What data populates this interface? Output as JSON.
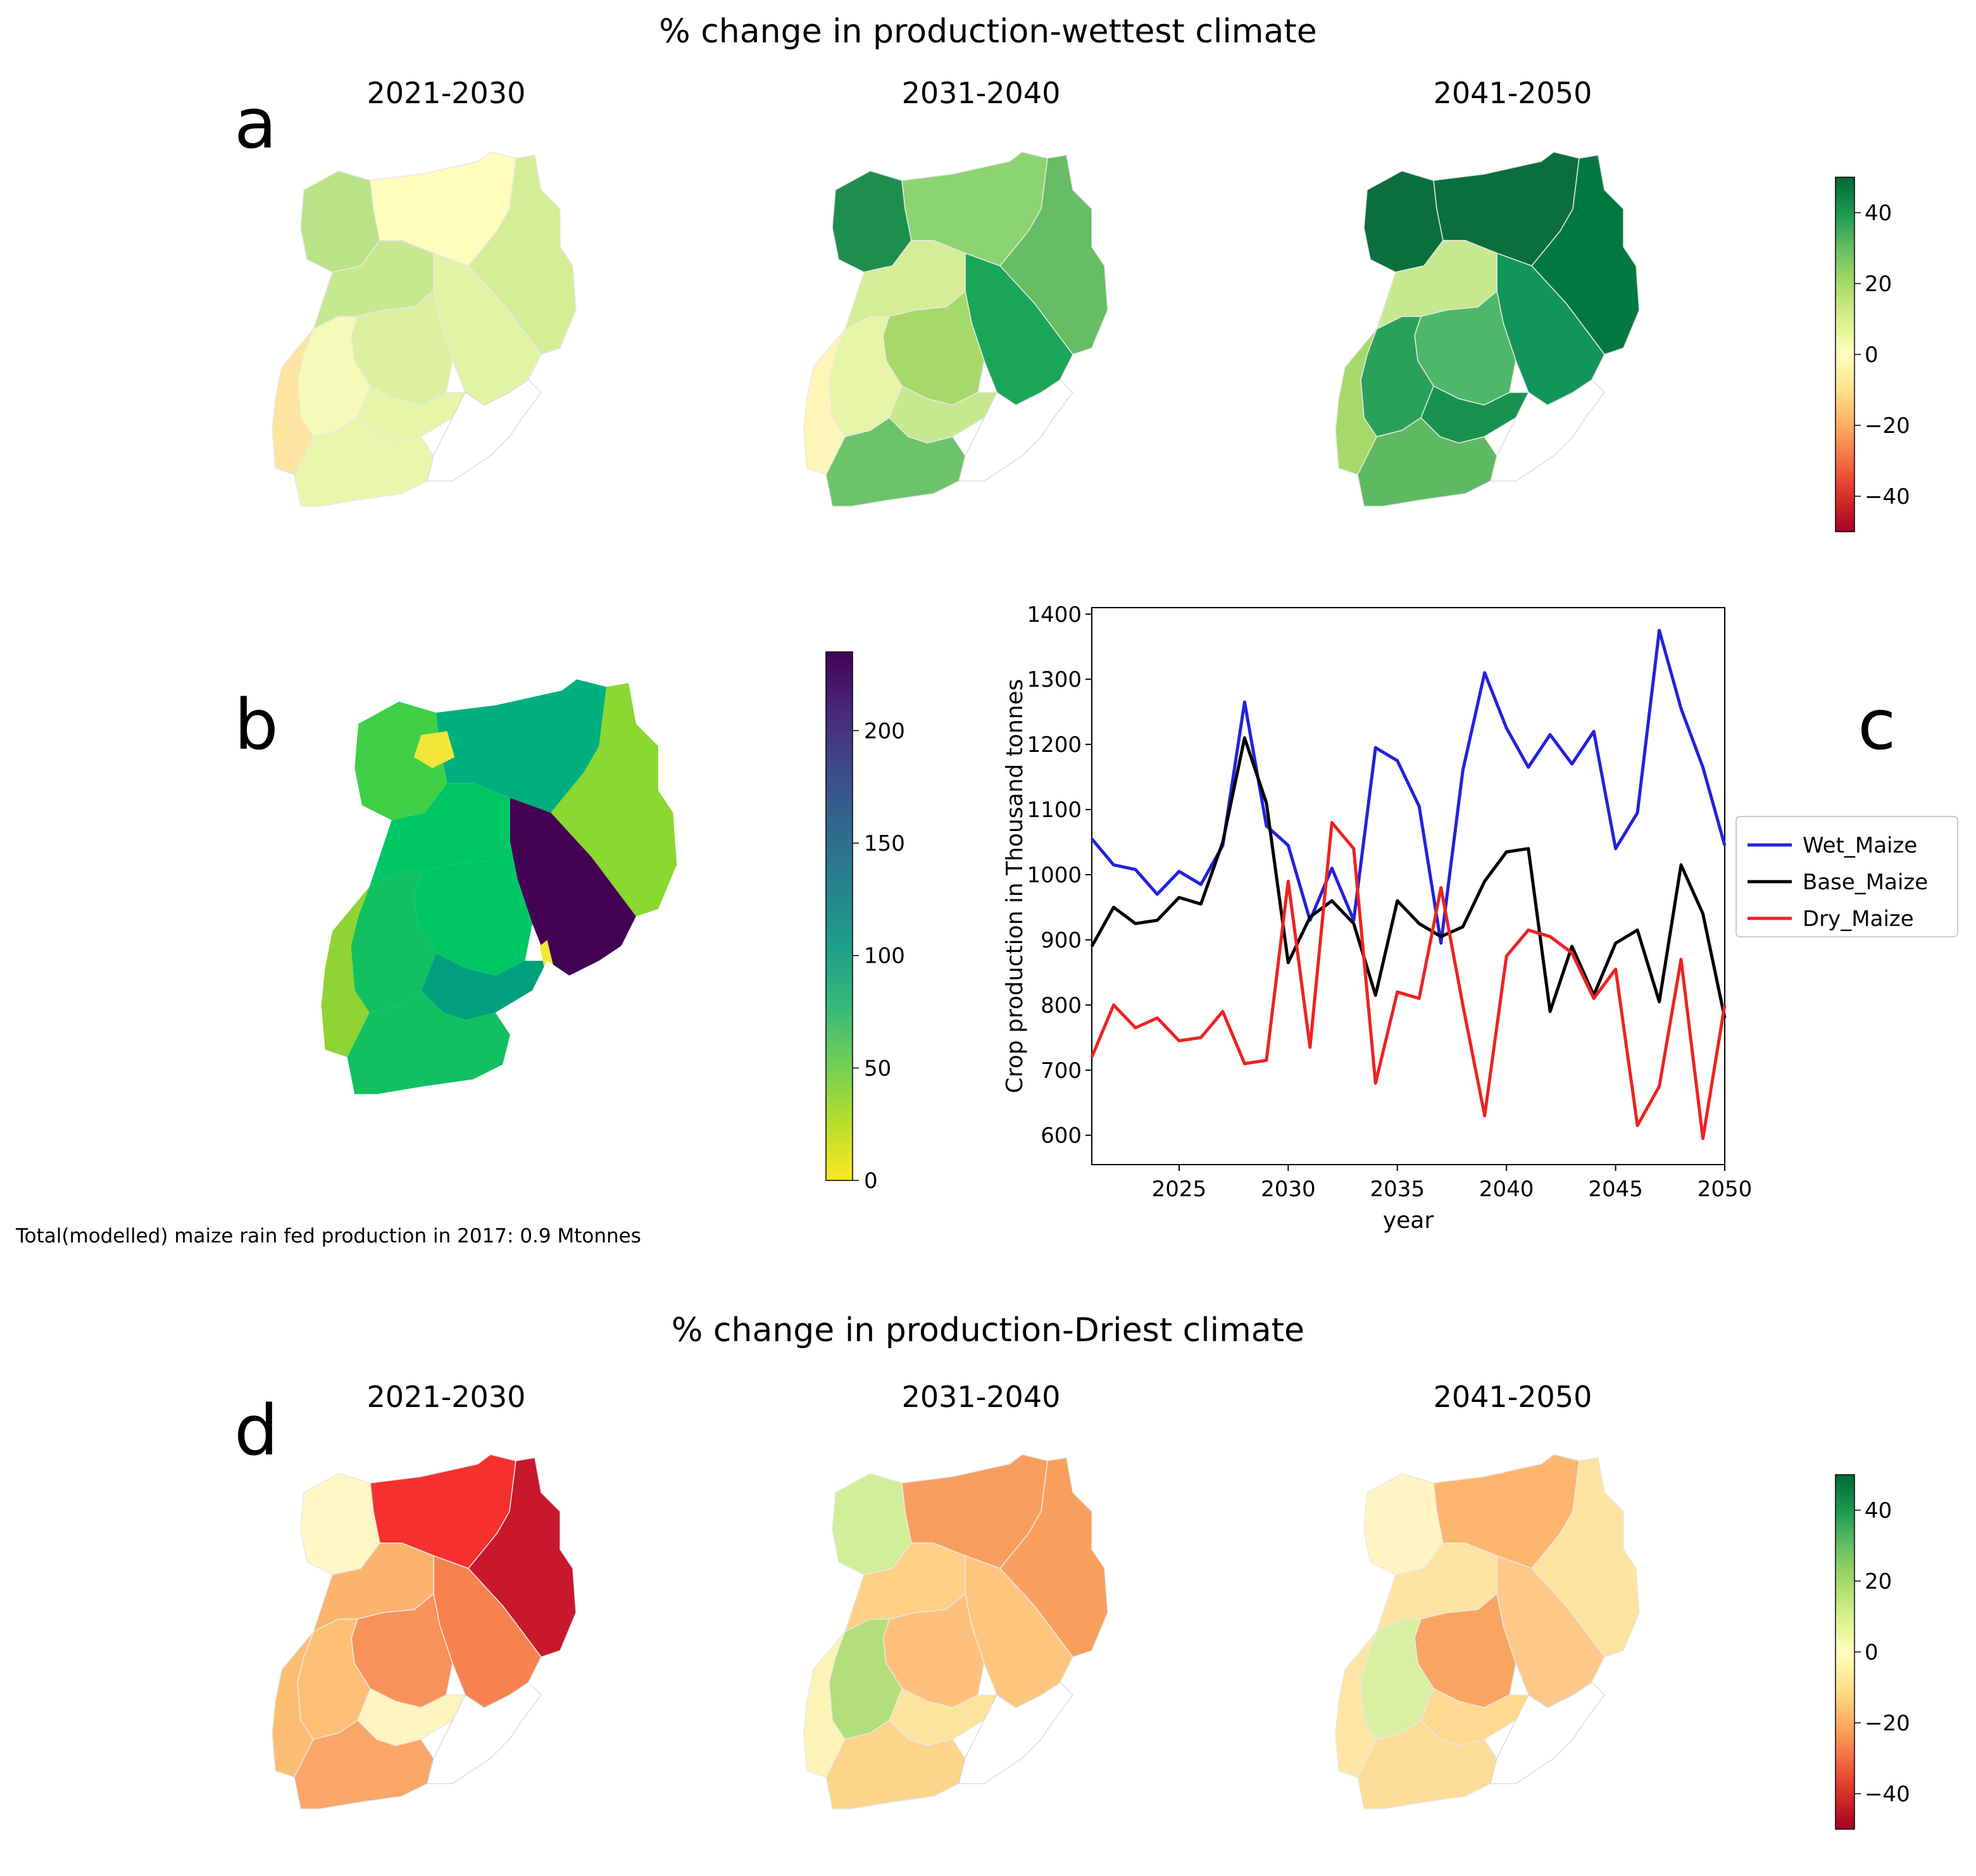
{
  "panel_letters": {
    "a": "a",
    "b": "b",
    "c": "c",
    "d": "d"
  },
  "top": {
    "title": "% change in production-wettest climate",
    "maps": [
      {
        "title": "2021-2030",
        "fills": [
          "#b9e386",
          "#fffcbc",
          "#d4ee96",
          "#e2f3a6",
          "#c6e98f",
          "#dcf0a0",
          "#e6f5a8",
          "#f5fab8",
          "#fde4a0",
          "#e9f6ac"
        ]
      },
      {
        "title": "2031-2040",
        "fills": [
          "#1e8e4f",
          "#8cd372",
          "#66bd63",
          "#1aa658",
          "#d4ee96",
          "#a6d96a",
          "#c6e98f",
          "#e6f5a8",
          "#fff5b8",
          "#6cc36a"
        ]
      },
      {
        "title": "2041-2050",
        "fills": [
          "#0b6f3c",
          "#0b6f3c",
          "#007a3f",
          "#11955a",
          "#c6e98f",
          "#4db86a",
          "#16924e",
          "#2aa158",
          "#a6d96a",
          "#5dba63"
        ]
      }
    ],
    "colorbar": {
      "ticks": [
        "40",
        "20",
        "0",
        "−20",
        "−40"
      ],
      "colors": [
        "#006837",
        "#1a9850",
        "#66bd63",
        "#a6d96a",
        "#d9ef8b",
        "#ffffbf",
        "#fee08b",
        "#fdae61",
        "#f46d43",
        "#d73027",
        "#a50026"
      ]
    }
  },
  "mid": {
    "map_fills": {
      "nw": "#3fd048",
      "north": "#00af7f",
      "east": "#8ad831",
      "central": "#00c765",
      "southwest": "#12c062",
      "lake": "#00a07f",
      "east_central": "#440154",
      "west_strip": "#8fd435",
      "pale": "#f2e63a"
    },
    "colorbar": {
      "ticks": [
        "200",
        "150",
        "100",
        "50",
        "0"
      ],
      "colors": [
        "#440154",
        "#482878",
        "#3e4a89",
        "#31688e",
        "#26828e",
        "#1f9e89",
        "#35b779",
        "#6ece58",
        "#b5de2b",
        "#fde725"
      ]
    },
    "footnote": "Total(modelled) maize rain fed production in 2017: 0.9 Mtonnes"
  },
  "chart_data": {
    "type": "line",
    "x": [
      2021,
      2022,
      2023,
      2024,
      2025,
      2026,
      2027,
      2028,
      2029,
      2030,
      2031,
      2032,
      2033,
      2034,
      2035,
      2036,
      2037,
      2038,
      2039,
      2040,
      2041,
      2042,
      2043,
      2044,
      2045,
      2046,
      2047,
      2048,
      2049,
      2050
    ],
    "series": [
      {
        "name": "Wet_Maize",
        "color": "#2222dd",
        "values": [
          1055,
          1015,
          1008,
          970,
          1005,
          985,
          1045,
          1265,
          1075,
          1045,
          930,
          1010,
          930,
          1195,
          1175,
          1105,
          895,
          1160,
          1310,
          1225,
          1165,
          1215,
          1170,
          1220,
          1040,
          1095,
          1375,
          1255,
          1165,
          1045
        ]
      },
      {
        "name": "Base_Maize",
        "color": "#000000",
        "values": [
          890,
          950,
          925,
          930,
          965,
          955,
          1050,
          1210,
          1110,
          865,
          935,
          960,
          925,
          815,
          960,
          925,
          905,
          920,
          990,
          1035,
          1040,
          790,
          890,
          815,
          895,
          915,
          805,
          1015,
          940,
          780
        ]
      },
      {
        "name": "Dry_Maize",
        "color": "#ee2222",
        "values": [
          720,
          800,
          765,
          780,
          745,
          750,
          790,
          710,
          715,
          990,
          735,
          1080,
          1040,
          680,
          820,
          810,
          980,
          800,
          630,
          875,
          915,
          905,
          880,
          810,
          855,
          615,
          675,
          870,
          595,
          800
        ]
      }
    ],
    "xlabel": "year",
    "ylabel": "Crop production in Thousand tonnes",
    "xlim": [
      2021,
      2050
    ],
    "ylim": [
      555,
      1410
    ],
    "xticks": [
      2025,
      2030,
      2035,
      2040,
      2045,
      2050
    ],
    "yticks": [
      600,
      700,
      800,
      900,
      1000,
      1100,
      1200,
      1300,
      1400
    ],
    "legend": "right, outside"
  },
  "bottom": {
    "title": "% change in production-Driest climate",
    "maps": [
      {
        "title": "2021-2030",
        "fills": [
          "#fff7c4",
          "#f6302e",
          "#c8182c",
          "#f8824f",
          "#fdb36b",
          "#f7925a",
          "#fff3c0",
          "#fdbf74",
          "#fcbd72",
          "#f9a668"
        ]
      },
      {
        "title": "2031-2040",
        "fills": [
          "#d0ef98",
          "#f99d5f",
          "#fa9e5e",
          "#fdc67c",
          "#fecf85",
          "#fdc07c",
          "#fde49d",
          "#b2df7a",
          "#fef3b6",
          "#fdd48a"
        ]
      },
      {
        "title": "2041-2050",
        "fills": [
          "#fff4c2",
          "#fcb56d",
          "#fee2a0",
          "#fdc888",
          "#fee3a2",
          "#f9a561",
          "#fed98f",
          "#d9f0a3",
          "#fee5a6",
          "#fddc98"
        ]
      }
    ]
  }
}
